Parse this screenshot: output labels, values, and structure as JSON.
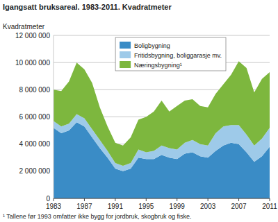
{
  "chart_data": {
    "type": "area",
    "stacked": true,
    "title": "Igangsatt bruksareal. 1983-2011. Kvadratmeter",
    "y_label": "Kvadratmeter",
    "footnote": "¹ Tallene før 1993 omfatter ikke bygg for jordbruk, skogbruk og fiske.",
    "legend": "upper center",
    "grid": true,
    "x": [
      1983,
      1984,
      1985,
      1986,
      1987,
      1988,
      1989,
      1990,
      1991,
      1992,
      1993,
      1994,
      1995,
      1996,
      1997,
      1998,
      1999,
      2000,
      2001,
      2002,
      2003,
      2004,
      2005,
      2006,
      2007,
      2008,
      2009,
      2010,
      2011
    ],
    "xlim": [
      1983,
      2011
    ],
    "xticks": [
      1983,
      1987,
      1991,
      1995,
      1999,
      2003,
      2007,
      2011
    ],
    "ylim": [
      0,
      12000000
    ],
    "yticks": [
      0,
      {
        "value": 2000000,
        "label": "2 000 000"
      },
      {
        "value": 4000000,
        "label": "4 000 000"
      },
      {
        "value": 6000000,
        "label": "6 000 000"
      },
      {
        "value": 8000000,
        "label": "8 000 000"
      },
      {
        "value": 10000000,
        "label": "10 000 000"
      },
      {
        "value": 12000000,
        "label": "12 000 000"
      }
    ],
    "series": [
      {
        "name": "Boligbygning",
        "color": "#3a8cc6",
        "values": [
          5200000,
          4800000,
          5000000,
          5600000,
          5300000,
          4500000,
          3700000,
          3000000,
          2200000,
          2000000,
          2200000,
          3000000,
          2900000,
          2900000,
          3200000,
          3000000,
          2900000,
          3300000,
          3400000,
          3100000,
          3000000,
          3500000,
          3900000,
          4100000,
          4000000,
          3400000,
          2700000,
          3100000,
          3800000
        ]
      },
      {
        "name": "Fritidsbygning, boliggarasje mv.",
        "color": "#9ecae9",
        "values": [
          500000,
          500000,
          500000,
          600000,
          600000,
          600000,
          600000,
          500000,
          400000,
          400000,
          400000,
          600000,
          500000,
          600000,
          700000,
          700000,
          700000,
          800000,
          900000,
          900000,
          900000,
          1300000,
          1400000,
          1300000,
          1400000,
          1300000,
          1200000,
          1300000,
          1400000
        ]
      },
      {
        "name": "Næringsbygning¹",
        "color": "#7db73e",
        "values": [
          2300000,
          2600000,
          3100000,
          3800000,
          3600000,
          3400000,
          2400000,
          1800000,
          1500000,
          1500000,
          1900000,
          2200000,
          2600000,
          2900000,
          3300000,
          2700000,
          3200000,
          3100000,
          3000000,
          2800000,
          2800000,
          2900000,
          3100000,
          3700000,
          4700000,
          4900000,
          3900000,
          4400000,
          4100000
        ]
      }
    ]
  }
}
